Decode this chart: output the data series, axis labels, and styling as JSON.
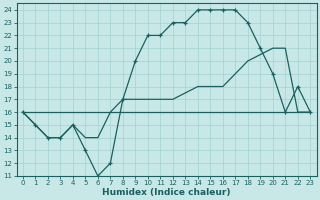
{
  "xlabel": "Humidex (Indice chaleur)",
  "xlim": [
    -0.5,
    23.5
  ],
  "ylim": [
    11,
    24.5
  ],
  "xticks": [
    0,
    1,
    2,
    3,
    4,
    5,
    6,
    7,
    8,
    9,
    10,
    11,
    12,
    13,
    14,
    15,
    16,
    17,
    18,
    19,
    20,
    21,
    22,
    23
  ],
  "yticks": [
    11,
    12,
    13,
    14,
    15,
    16,
    17,
    18,
    19,
    20,
    21,
    22,
    23,
    24
  ],
  "bg_color": "#c8e8e8",
  "grid_color": "#aad4d4",
  "line_color": "#1a6060",
  "line1_x": [
    0,
    1,
    2,
    3,
    4,
    5,
    6,
    7,
    8,
    9,
    10,
    11,
    12,
    13,
    14,
    15,
    16,
    17,
    18,
    19,
    20,
    21,
    22,
    23
  ],
  "line1_y": [
    16,
    15,
    14,
    14,
    15,
    13,
    11,
    12,
    17,
    20,
    22,
    22,
    23,
    23,
    24,
    24,
    24,
    24,
    23,
    21,
    19,
    16,
    18,
    16
  ],
  "line2_x": [
    0,
    2,
    3,
    4,
    5,
    6,
    7,
    8,
    10,
    12,
    14,
    16,
    18,
    20,
    21,
    22,
    23
  ],
  "line2_y": [
    16,
    14,
    14,
    15,
    14,
    14,
    16,
    17,
    17,
    17,
    18,
    18,
    20,
    21,
    21,
    16,
    16
  ],
  "line3_x": [
    0,
    7,
    8,
    9,
    10,
    11,
    12,
    13,
    14,
    15,
    16,
    17,
    18,
    19,
    20,
    21,
    22,
    23
  ],
  "line3_y": [
    16,
    16,
    16,
    16,
    16,
    16,
    16,
    16,
    16,
    16,
    16,
    16,
    16,
    16,
    16,
    16,
    16,
    16
  ]
}
